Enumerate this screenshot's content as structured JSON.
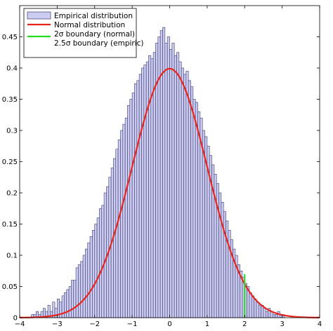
{
  "chart_data": {
    "type": "bar",
    "title": "",
    "xlabel": "",
    "ylabel": "",
    "xlim": [
      -4,
      4
    ],
    "ylim": [
      0,
      0.5
    ],
    "grid": false,
    "legend_position": "top-left",
    "x_ticks": [
      "-4",
      "-3",
      "-2",
      "-1",
      "0",
      "1",
      "2",
      "3",
      "4"
    ],
    "y_ticks": [
      "0",
      "0.05",
      "0.1",
      "0.15",
      "0.2",
      "0.25",
      "0.3",
      "0.35",
      "0.4",
      "0.45"
    ],
    "colors": {
      "histogram_fill": "#ccccf2",
      "histogram_edge": "#3a3a6a",
      "normal_curve": "#e8251c",
      "boundary_line": "#22dd22"
    },
    "legend": [
      {
        "label": "Empirical distribution",
        "style": "patch"
      },
      {
        "label": "Normal distribution",
        "style": "line-red"
      },
      {
        "label": "2σ boundary (normal)",
        "style": "line-green"
      },
      {
        "label": "2.5σ boundary (empiric)",
        "style": "none"
      }
    ],
    "series": [
      {
        "name": "Empirical distribution",
        "kind": "histogram",
        "bin_width": 0.0625,
        "bin_start": -3.6875,
        "values": [
          0.005,
          0.005,
          0.01,
          0.005,
          0.01,
          0.015,
          0.01,
          0.02,
          0.01,
          0.025,
          0.015,
          0.03,
          0.025,
          0.035,
          0.04,
          0.045,
          0.05,
          0.06,
          0.06,
          0.08,
          0.085,
          0.09,
          0.1,
          0.11,
          0.12,
          0.13,
          0.14,
          0.15,
          0.16,
          0.175,
          0.18,
          0.2,
          0.21,
          0.225,
          0.24,
          0.255,
          0.27,
          0.285,
          0.3,
          0.31,
          0.32,
          0.34,
          0.35,
          0.36,
          0.375,
          0.38,
          0.39,
          0.4,
          0.405,
          0.41,
          0.42,
          0.415,
          0.425,
          0.44,
          0.45,
          0.46,
          0.465,
          0.44,
          0.45,
          0.43,
          0.44,
          0.42,
          0.425,
          0.41,
          0.4,
          0.39,
          0.395,
          0.38,
          0.37,
          0.35,
          0.345,
          0.33,
          0.32,
          0.3,
          0.29,
          0.275,
          0.26,
          0.245,
          0.23,
          0.215,
          0.2,
          0.185,
          0.17,
          0.155,
          0.14,
          0.125,
          0.11,
          0.1,
          0.085,
          0.075,
          0.065,
          0.055,
          0.05,
          0.04,
          0.035,
          0.03,
          0.025,
          0.02,
          0.02,
          0.015,
          0.01,
          0.015,
          0.01,
          0.005,
          0.005,
          0.01,
          0.005,
          0.005
        ]
      },
      {
        "name": "Normal distribution",
        "kind": "pdf",
        "mean": 0,
        "sd": 1,
        "x_range": [
          -4,
          4
        ]
      },
      {
        "name": "2σ boundary (normal)",
        "kind": "vline",
        "x": 2.0,
        "y_top": 0.07
      }
    ]
  }
}
